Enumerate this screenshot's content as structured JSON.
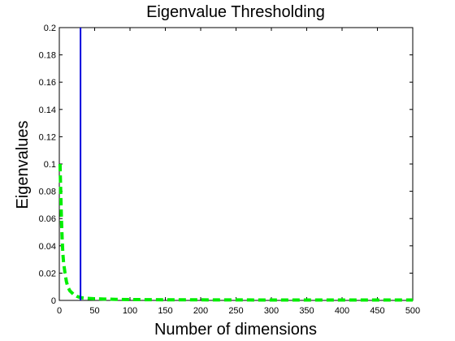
{
  "chart_data": {
    "type": "line",
    "title": "Eigenvalue Thresholding",
    "xlabel": "Number of dimensions",
    "ylabel": "Eigenvalues",
    "xlim": [
      0,
      500
    ],
    "ylim": [
      0,
      0.2
    ],
    "x_ticks": [
      0,
      50,
      100,
      150,
      200,
      250,
      300,
      350,
      400,
      450,
      500
    ],
    "x_tick_labels": [
      "0",
      "50",
      "100",
      "150",
      "200",
      "250",
      "300",
      "350",
      "400",
      "450",
      "500"
    ],
    "y_ticks": [
      0,
      0.02,
      0.04,
      0.06,
      0.08,
      0.1,
      0.12,
      0.14,
      0.16,
      0.18,
      0.2
    ],
    "y_tick_labels": [
      "0",
      "0.02",
      "0.04",
      "0.06",
      "0.08",
      "0.1",
      "0.12",
      "0.14",
      "0.16",
      "0.18",
      "0.2"
    ],
    "grid": false,
    "series": [
      {
        "style": "dashed",
        "color": "#00ee00",
        "x": [
          1,
          2,
          3,
          4,
          5,
          6,
          8,
          10,
          12,
          15,
          20,
          25,
          30,
          40,
          50,
          60,
          80,
          100,
          150,
          200,
          300,
          400,
          500
        ],
        "y": [
          0.1,
          0.08,
          0.06,
          0.045,
          0.035,
          0.028,
          0.02,
          0.014,
          0.01,
          0.007,
          0.0045,
          0.003,
          0.002,
          0.0015,
          0.0012,
          0.001,
          0.0008,
          0.0006,
          0.0005,
          0.0004,
          0.0003,
          0.0003,
          0.0003
        ]
      }
    ],
    "vertical_line": {
      "x": 30,
      "y_from": 0,
      "y_to": 0.2,
      "color": "#0000dd"
    }
  }
}
